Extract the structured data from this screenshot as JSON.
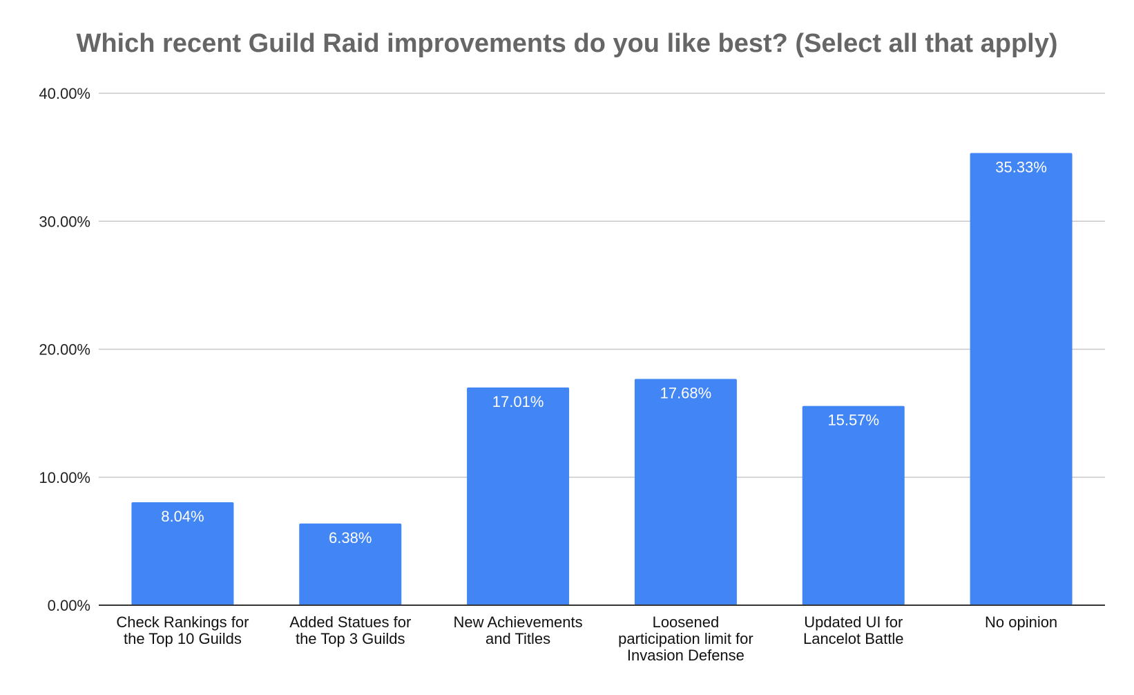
{
  "chart_data": {
    "type": "bar",
    "title": "Which recent Guild Raid improvements do you like best? (Select all that apply)",
    "xlabel": "",
    "ylabel": "",
    "categories": [
      [
        "Check Rankings for",
        "the Top 10 Guilds"
      ],
      [
        "Added Statues for",
        "the Top 3 Guilds"
      ],
      [
        "New Achievements",
        "and Titles"
      ],
      [
        "Loosened",
        "participation limit for",
        "Invasion Defense"
      ],
      [
        "Updated UI for",
        "Lancelot Battle"
      ],
      [
        "No opinion"
      ]
    ],
    "values": [
      8.04,
      6.38,
      17.01,
      17.68,
      15.57,
      35.33
    ],
    "data_labels": [
      "8.04%",
      "6.38%",
      "17.01%",
      "17.68%",
      "15.57%",
      "35.33%"
    ],
    "ylim": [
      0,
      40
    ],
    "y_ticks": [
      0,
      10,
      20,
      30,
      40
    ],
    "y_tick_labels": [
      "0.00%",
      "10.00%",
      "20.00%",
      "30.00%",
      "40.00%"
    ],
    "grid": true,
    "legend": "none",
    "bar_color": "#4285f4"
  }
}
